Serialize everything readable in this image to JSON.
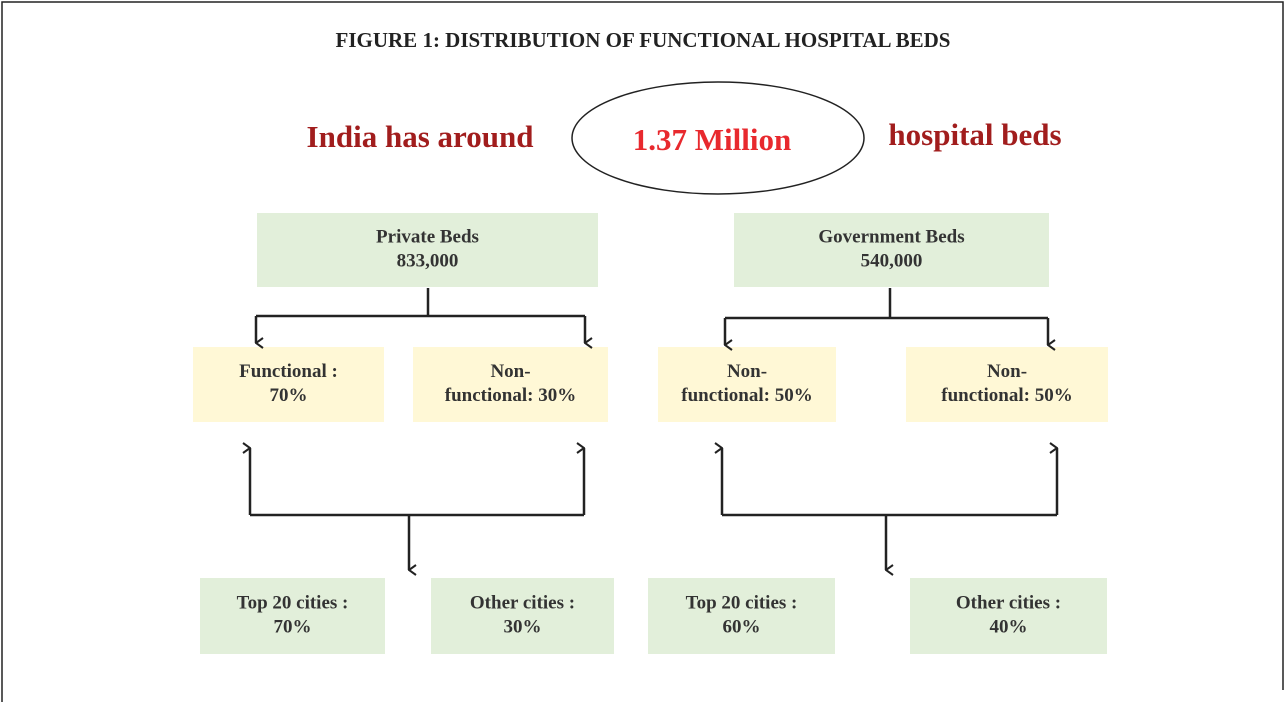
{
  "title": "FIGURE 1: DISTRIBUTION OF FUNCTIONAL HOSPITAL BEDS",
  "headline": {
    "before": "India has around",
    "highlight": "1.37 Million",
    "after": "hospital beds"
  },
  "groups": [
    {
      "label": "Private Beds",
      "value": "833,000",
      "splits": [
        [
          "Functional :",
          "70%"
        ],
        [
          "Non-",
          "functional: 30%"
        ]
      ],
      "cities": [
        [
          "Top 20 cities :",
          "70%"
        ],
        [
          "Other cities :",
          "30%"
        ]
      ]
    },
    {
      "label": "Government Beds",
      "value": "540,000",
      "splits": [
        [
          "Non-",
          "functional: 50%"
        ],
        [
          "Non-",
          "functional: 50%"
        ]
      ],
      "cities": [
        [
          "Top 20 cities :",
          "60%"
        ],
        [
          "Other cities :",
          "40%"
        ]
      ]
    }
  ]
}
